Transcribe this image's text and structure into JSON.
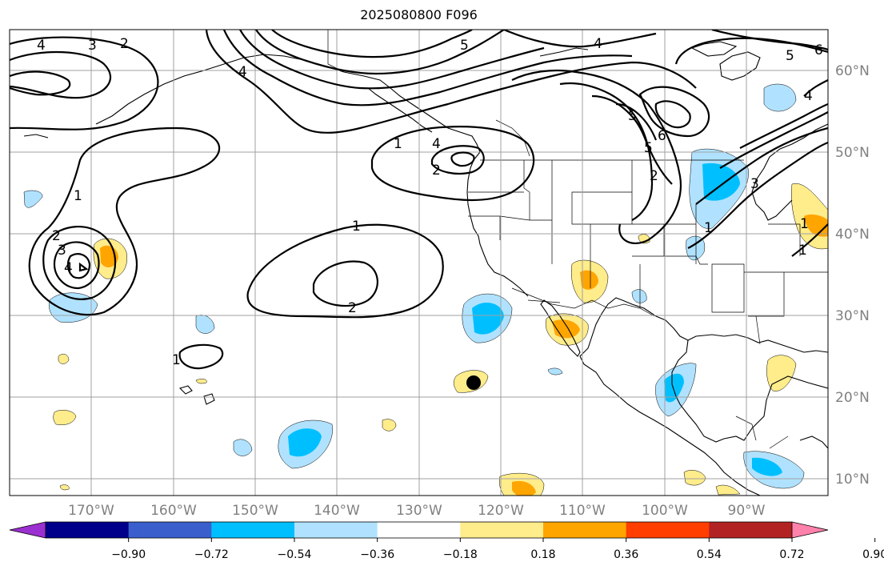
{
  "title": "2025080800 F096",
  "map": {
    "lon_ticks": [
      "170°W",
      "160°W",
      "150°W",
      "140°W",
      "130°W",
      "120°W",
      "110°W",
      "100°W",
      "90°W"
    ],
    "lat_ticks": [
      "60°N",
      "50°N",
      "40°N",
      "30°N",
      "20°N",
      "10°N"
    ],
    "grid": true,
    "marker": {
      "lon": -123,
      "lat": 22,
      "color": "#000000"
    }
  },
  "contour_labels": [
    "4",
    "3",
    "2",
    "5",
    "6",
    "4",
    "5",
    "1",
    "2",
    "1",
    "4",
    "5",
    "6",
    "5",
    "4",
    "3",
    "2",
    "1",
    "1",
    "2",
    "1",
    "1",
    "3",
    "4",
    "2",
    "1",
    "4"
  ],
  "colorbar": {
    "ticks": [
      "−0.90",
      "−0.72",
      "−0.54",
      "−0.36",
      "−0.18",
      "0.18",
      "0.36",
      "0.54",
      "0.72",
      "0.90"
    ],
    "colors": [
      "#9b30d0",
      "#00008b",
      "#3a5fcd",
      "#00bfff",
      "#b0e2ff",
      "#ffffff",
      "#ffec8b",
      "#ffa500",
      "#ff3e00",
      "#b22222",
      "#ff82ab"
    ]
  },
  "colors": {
    "neg_light": "#b0e2ff",
    "neg_mid": "#00bfff",
    "pos_light": "#ffec8b",
    "pos_mid": "#ffa500"
  }
}
